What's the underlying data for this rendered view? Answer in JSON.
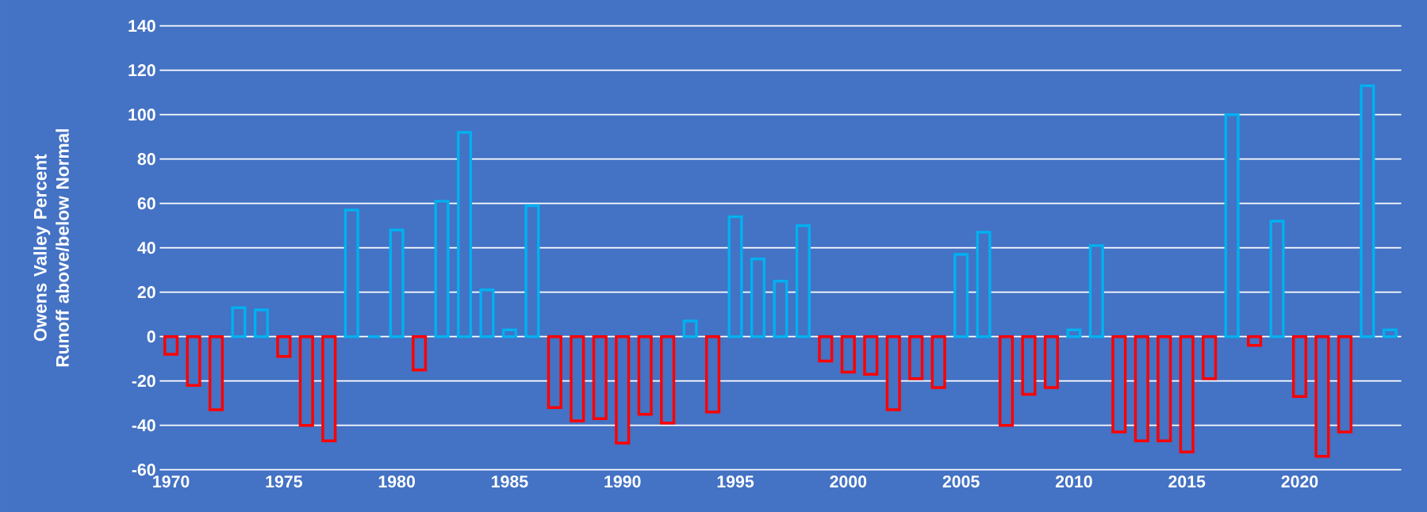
{
  "chart_data": {
    "type": "bar",
    "ylabel": "Owens Valley Percent Runoff above/below Normal",
    "categories": [
      "1970",
      null,
      null,
      null,
      null,
      "1975",
      null,
      null,
      null,
      null,
      "1980",
      null,
      null,
      null,
      null,
      "1985",
      null,
      null,
      null,
      null,
      "1990",
      null,
      null,
      null,
      null,
      "1995",
      null,
      null,
      null,
      null,
      "2000",
      null,
      null,
      null,
      null,
      "2005",
      null,
      null,
      null,
      null,
      "2010",
      null,
      null,
      null,
      null,
      "2015",
      null,
      null,
      null,
      null,
      "2020",
      null,
      null,
      null,
      null
    ],
    "values": [
      -8,
      -22,
      -33,
      13,
      12,
      -9,
      -40,
      -47,
      57,
      0,
      48,
      -15,
      61,
      92,
      21,
      3,
      59,
      -32,
      -38,
      -37,
      -48,
      -35,
      -39,
      7,
      -34,
      54,
      35,
      25,
      50,
      -11,
      -16,
      -17,
      -33,
      -19,
      -23,
      37,
      47,
      -40,
      -26,
      -23,
      3,
      41,
      -43,
      -47,
      -47,
      -52,
      -19,
      100,
      -4,
      52,
      -27,
      -54,
      -43,
      113,
      3
    ],
    "colors": [
      "#ff0000",
      "#ff0000",
      "#ff0000",
      "#00b0f0",
      "#00b0f0",
      "#ff0000",
      "#ff0000",
      "#ff0000",
      "#00b0f0",
      "#00b0f0",
      "#00b0f0",
      "#ff0000",
      "#00b0f0",
      "#00b0f0",
      "#00b0f0",
      "#00b0f0",
      "#00b0f0",
      "#ff0000",
      "#ff0000",
      "#ff0000",
      "#ff0000",
      "#ff0000",
      "#ff0000",
      "#00b0f0",
      "#ff0000",
      "#00b0f0",
      "#00b0f0",
      "#00b0f0",
      "#00b0f0",
      "#ff0000",
      "#ff0000",
      "#ff0000",
      "#ff0000",
      "#ff0000",
      "#ff0000",
      "#00b0f0",
      "#00b0f0",
      "#ff0000",
      "#ff0000",
      "#ff0000",
      "#00b0f0",
      "#00b0f0",
      "#ff0000",
      "#ff0000",
      "#ff0000",
      "#ff0000",
      "#ff0000",
      "#00b0f0",
      "#ff0000",
      "#00b0f0",
      "#ff0000",
      "#ff0000",
      "#ff0000",
      "#00b0f0",
      "#00b0f0"
    ],
    "ylim": [
      -60,
      140
    ],
    "yticks": [
      -60,
      -40,
      -20,
      0,
      20,
      40,
      60,
      80,
      100,
      120,
      140
    ],
    "grid": "y"
  }
}
